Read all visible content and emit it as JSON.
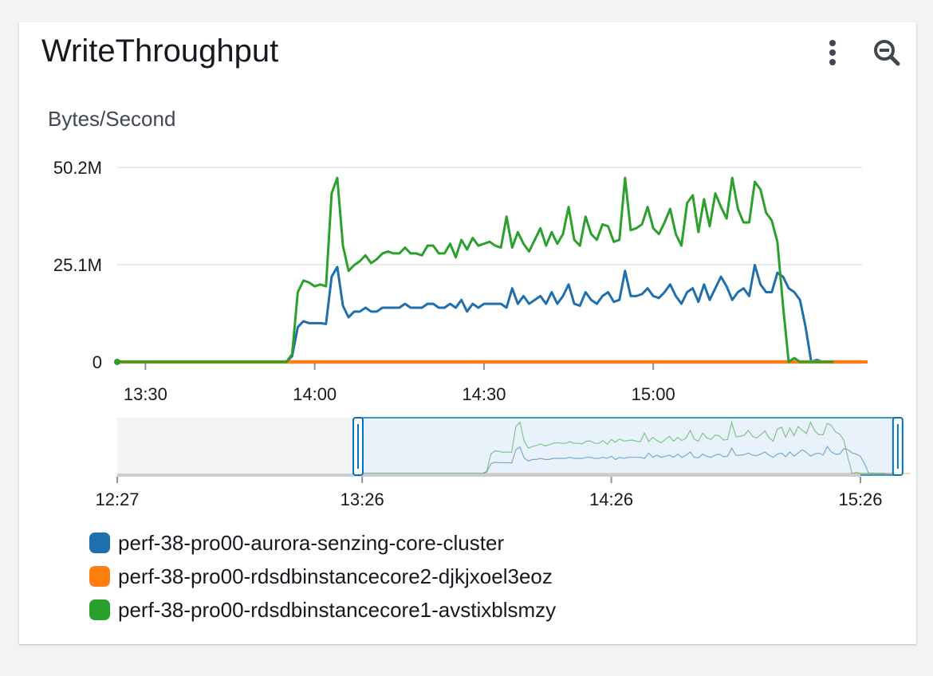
{
  "widget": {
    "title": "WriteThroughput"
  },
  "icons": {
    "menu": "vertical-ellipsis-icon",
    "zoom": "zoom-out-icon"
  },
  "colors": {
    "accent": "#0073bb",
    "grid": "#e9ebed",
    "axis": "#aab7b8",
    "navigator_fill": "#e9f1fb"
  },
  "chart_data": {
    "type": "line",
    "ylabel": "Bytes/Second",
    "yticks": [
      {
        "value": 0,
        "label": "0"
      },
      {
        "value": 25.1,
        "label": "25.1M"
      },
      {
        "value": 50.2,
        "label": "50.2M"
      }
    ],
    "ylim": [
      0,
      50.2
    ],
    "x_start_minute": 805,
    "xlim": [
      805,
      937
    ],
    "xticks": [
      {
        "minute": 810,
        "label": "13:30"
      },
      {
        "minute": 840,
        "label": "14:00"
      },
      {
        "minute": 870,
        "label": "14:30"
      },
      {
        "minute": 900,
        "label": "15:00"
      }
    ],
    "grid": true,
    "legend_position": "bottom",
    "series": [
      {
        "name": "perf-38-pro00-aurora-senzing-core-cluster",
        "color": "#1f6fad",
        "values": [
          0,
          0,
          0,
          0,
          0,
          0,
          0,
          0,
          0,
          0,
          0,
          0,
          0,
          0,
          0,
          0,
          0,
          0,
          0,
          0,
          0,
          0,
          0,
          0,
          0,
          0,
          0,
          0,
          0,
          0,
          0,
          1.5,
          9,
          10.5,
          10,
          10,
          10,
          9.8,
          22,
          24.5,
          14.5,
          11.5,
          13,
          13,
          14,
          13,
          13,
          14,
          14,
          14,
          14,
          15,
          14,
          14,
          14,
          15,
          15,
          14,
          14,
          15,
          14,
          16,
          13,
          15,
          14,
          15,
          15,
          15,
          15,
          14,
          19,
          15,
          17,
          15,
          16,
          17,
          15,
          18,
          15,
          17,
          20,
          15,
          14.5,
          18,
          16,
          15,
          17,
          18,
          15.5,
          16,
          23.5,
          17,
          17,
          17.5,
          19,
          17,
          16.5,
          18,
          20,
          17,
          15,
          18,
          19,
          15.5,
          20,
          16,
          19,
          22,
          19.5,
          16,
          18,
          19,
          17,
          25,
          20,
          18,
          18,
          23,
          22,
          19,
          18,
          16,
          9,
          0,
          0.5,
          0,
          0,
          0,
          0,
          0,
          0,
          0
        ]
      },
      {
        "name": "perf-38-pro00-rdsdbinstancecore2-djkjxoel3eoz",
        "color": "#ff7f0e",
        "values": [
          0,
          0,
          0,
          0,
          0,
          0,
          0,
          0,
          0,
          0,
          0,
          0,
          0,
          0,
          0,
          0,
          0,
          0,
          0,
          0,
          0,
          0,
          0,
          0,
          0,
          0,
          0,
          0,
          0,
          0,
          0,
          0,
          0,
          0,
          0,
          0,
          0,
          0,
          0,
          0,
          0,
          0,
          0,
          0,
          0,
          0,
          0,
          0,
          0,
          0,
          0,
          0,
          0,
          0,
          0,
          0,
          0,
          0,
          0,
          0,
          0,
          0,
          0,
          0,
          0,
          0,
          0,
          0,
          0,
          0,
          0,
          0,
          0,
          0,
          0,
          0,
          0,
          0,
          0,
          0,
          0,
          0,
          0,
          0,
          0,
          0,
          0,
          0,
          0,
          0,
          0,
          0,
          0,
          0,
          0,
          0,
          0,
          0,
          0,
          0,
          0,
          0,
          0,
          0,
          0,
          0,
          0,
          0,
          0,
          0,
          0,
          0,
          0,
          0,
          0,
          0,
          0,
          0,
          0,
          0,
          0,
          0,
          0,
          0,
          0,
          0,
          0,
          0,
          0,
          0,
          0,
          0,
          0,
          0
        ]
      },
      {
        "name": "perf-38-pro00-rdsdbinstancecore1-avstixblsmzy",
        "color": "#2ca02c",
        "values": [
          0.2,
          0,
          0,
          0,
          0,
          0,
          0,
          0,
          0,
          0,
          0,
          0,
          0,
          0,
          0,
          0,
          0,
          0,
          0,
          0,
          0,
          0,
          0,
          0,
          0,
          0,
          0,
          0,
          0,
          0,
          0,
          2,
          18,
          21,
          20.5,
          19.5,
          20,
          19.5,
          43.5,
          47.5,
          30,
          23.5,
          25,
          26,
          27.5,
          25.5,
          26.5,
          28,
          28.5,
          28,
          28,
          29.5,
          28,
          28,
          27.5,
          30,
          30,
          28,
          28,
          30.5,
          27,
          31.5,
          29,
          32,
          30,
          30.5,
          31,
          30,
          29.5,
          37.5,
          29.5,
          33.5,
          30.5,
          28.5,
          31.5,
          34.5,
          30,
          33.5,
          30.5,
          33,
          40,
          31.5,
          30,
          37.5,
          33,
          31.5,
          35.5,
          35,
          31,
          31.5,
          47.5,
          34,
          34.5,
          35.5,
          40,
          34.5,
          33,
          36,
          39.5,
          33,
          30,
          41,
          43,
          33.5,
          42,
          35,
          43.5,
          40,
          37,
          47.5,
          39.5,
          36,
          36,
          46.5,
          44.5,
          38.5,
          36.5,
          31,
          14.5,
          0,
          1,
          0,
          0,
          0,
          0,
          0,
          0,
          0
        ]
      }
    ],
    "navigator": {
      "ticks": [
        {
          "minute": 747,
          "label": "12:27"
        },
        {
          "minute": 806,
          "label": "13:26"
        },
        {
          "minute": 866,
          "label": "14:26"
        },
        {
          "minute": 926,
          "label": "15:26"
        }
      ],
      "xlim": [
        747,
        926
      ],
      "window": [
        805,
        935
      ]
    }
  }
}
